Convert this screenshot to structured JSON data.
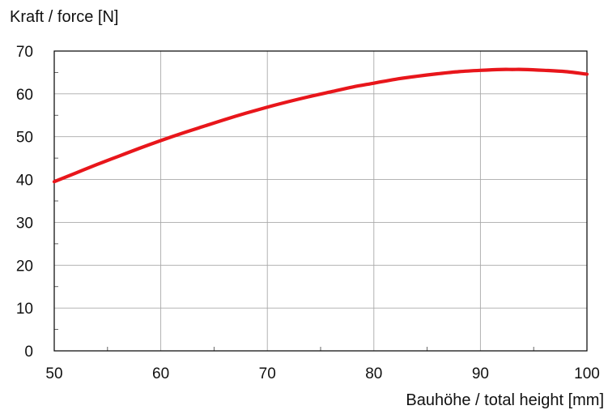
{
  "chart_data": {
    "type": "line",
    "ylabel": "Kraft / force  [N]",
    "xlabel": "Bauhöhe / total height  [mm]",
    "xlim": [
      50,
      100
    ],
    "ylim": [
      0,
      70
    ],
    "x_ticks": [
      50,
      60,
      70,
      80,
      90,
      100
    ],
    "y_ticks": [
      0,
      10,
      20,
      30,
      40,
      50,
      60,
      70
    ],
    "x_tick_labels": [
      "50",
      "60",
      "70",
      "80",
      "90",
      "100"
    ],
    "y_tick_labels": [
      "0",
      "10",
      "20",
      "30",
      "40",
      "50",
      "60",
      "70"
    ],
    "grid": true,
    "series": [
      {
        "color": "#e8161b",
        "x": [
          50,
          52,
          54,
          56,
          58,
          60,
          62,
          64,
          66,
          68,
          70,
          72,
          74,
          76,
          78,
          80,
          82,
          84,
          86,
          88,
          90,
          92,
          93,
          94,
          96,
          98,
          100
        ],
        "y": [
          39.5,
          41.5,
          43.5,
          45.4,
          47.3,
          49.1,
          50.8,
          52.4,
          54.0,
          55.5,
          56.9,
          58.2,
          59.4,
          60.5,
          61.6,
          62.5,
          63.4,
          64.1,
          64.7,
          65.2,
          65.5,
          65.7,
          65.7,
          65.7,
          65.5,
          65.2,
          64.6
        ]
      }
    ]
  }
}
